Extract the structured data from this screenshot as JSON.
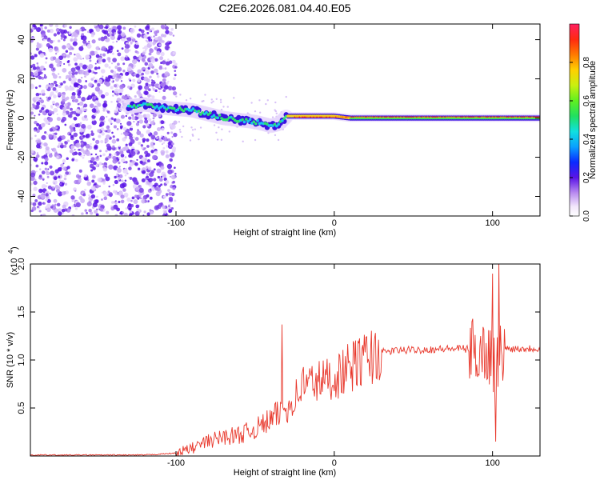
{
  "title": "C2E6.2026.081.04.40.E05",
  "chart_data": [
    {
      "type": "heatmap",
      "name": "spectrogram",
      "xlabel": "Height of straight line (km)",
      "ylabel": "Frequency (Hz)",
      "xlim": [
        -192,
        130
      ],
      "ylim": [
        -50,
        48
      ],
      "xticks": [
        -100,
        0,
        100
      ],
      "xtick_labels": [
        "-100",
        "0",
        "100"
      ],
      "yticks": [
        -40,
        -20,
        0,
        20,
        40
      ],
      "ytick_labels": [
        "-40",
        "-20",
        "0",
        "20",
        "40"
      ],
      "ridge": {
        "description_points_x": [
          -128,
          -120,
          -105,
          -90,
          -80,
          -70,
          -60,
          -50,
          -40,
          -35,
          -30,
          -20,
          -10,
          0,
          10,
          50,
          100,
          130
        ],
        "freq_hz": [
          6,
          7,
          5,
          4,
          2,
          0,
          -1,
          -2,
          -4,
          -3,
          1,
          1,
          1,
          1,
          0,
          0,
          0,
          0
        ]
      },
      "colorbar": {
        "label": "Normalized spectral amplitude",
        "range": [
          0,
          1
        ],
        "ticks": [
          0,
          0.2,
          0.4,
          0.6,
          0.8
        ],
        "tick_labels": [
          "0.0",
          "0.2",
          "0.4",
          "0.6",
          "0.8"
        ]
      }
    },
    {
      "type": "line",
      "name": "snr",
      "xlabel": "Height of straight line (km)",
      "ylabel": "SNR (10 * v/v)",
      "y_multiplier_label": "(x10",
      "y_multiplier_exp": "4",
      "xlim": [
        -192,
        130
      ],
      "ylim": [
        0,
        2.0
      ],
      "xticks": [
        -100,
        0,
        100
      ],
      "xtick_labels": [
        "-100",
        "0",
        "100"
      ],
      "yticks": [
        0.5,
        1.0,
        1.5,
        2.0
      ],
      "ytick_labels": [
        "0.5",
        "1.0",
        "1.5",
        "2.0"
      ],
      "color": "#e8382c",
      "series": {
        "x": [
          -192,
          -120,
          -100,
          -90,
          -80,
          -70,
          -60,
          -50,
          -40,
          -30,
          -25,
          -20,
          -10,
          0,
          10,
          20,
          30,
          40,
          60,
          80,
          90,
          95,
          100,
          102,
          104,
          106,
          110,
          120,
          130
        ],
        "y": [
          0.01,
          0.01,
          0.03,
          0.08,
          0.15,
          0.2,
          0.22,
          0.28,
          0.38,
          0.5,
          0.6,
          0.75,
          0.78,
          0.82,
          0.92,
          1.02,
          1.08,
          1.1,
          1.11,
          1.12,
          1.1,
          1.08,
          1.05,
          0.9,
          1.0,
          1.1,
          1.12,
          1.12,
          1.12
        ]
      },
      "spikes": [
        {
          "x": -33,
          "y": 1.37
        },
        {
          "x": 100,
          "y": 1.9
        },
        {
          "x": 102,
          "y": 0.15
        },
        {
          "x": 104,
          "y": 2.0
        }
      ]
    }
  ]
}
